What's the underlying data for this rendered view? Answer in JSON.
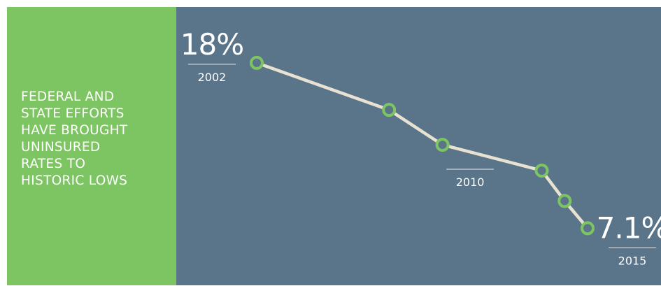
{
  "chart_data": {
    "type": "line",
    "title_lines": [
      "FEDERAL AND",
      "STATE EFFORTS",
      "HAVE BROUGHT",
      "UNINSURED",
      "RATES TO",
      "HISTORIC LOWS"
    ],
    "x": [
      2002,
      2007.2,
      2009.3,
      2013.2,
      2014.1,
      2015
    ],
    "series": [
      {
        "color": "#e8e2d2",
        "marker_color": "#7dc462",
        "values": [
          18,
          14.9,
          12.6,
          10.9,
          8.9,
          7.1
        ],
        "value_labels": [
          "18%",
          null,
          null,
          null,
          null,
          "7.1%"
        ]
      }
    ],
    "xlim": [
      2001,
      2016
    ],
    "xticks": [
      2002,
      2010,
      2015
    ],
    "ylim": [
      5,
      20
    ]
  }
}
